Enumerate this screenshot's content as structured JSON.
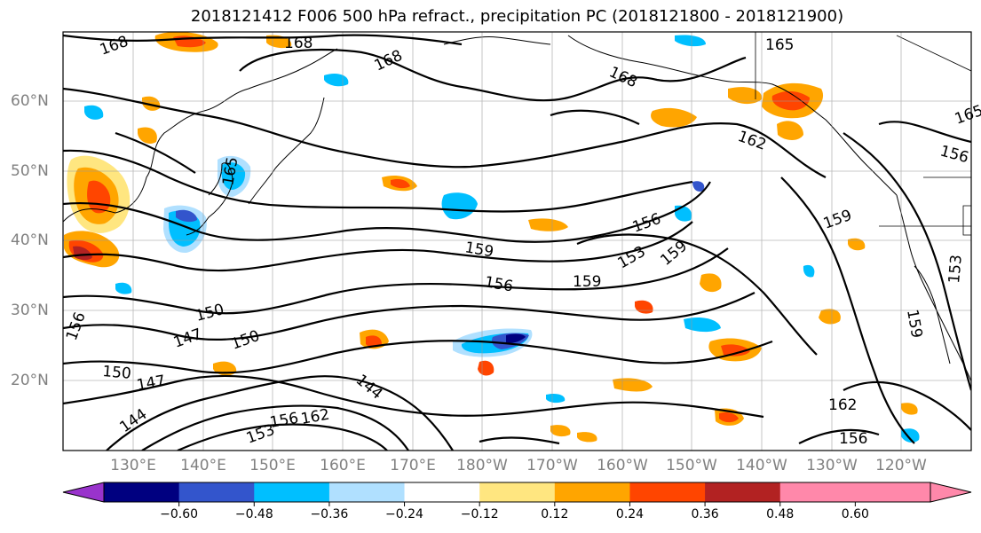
{
  "title": "2018121412 F006 500 hPa refract., precipitation PC (2018121800 - 2018121900)",
  "lat_labels": [
    "60°N",
    "50°N",
    "40°N",
    "30°N",
    "20°N"
  ],
  "lon_labels": [
    "130°E",
    "140°E",
    "150°E",
    "160°E",
    "170°E",
    "180°W",
    "170°W",
    "160°W",
    "150°W",
    "140°W",
    "130°W",
    "120°W"
  ],
  "contour_labels": [
    "168",
    "168",
    "168",
    "168",
    "165",
    "165",
    "162",
    "156",
    "165",
    "159",
    "159",
    "156",
    "156",
    "153",
    "159",
    "159",
    "150",
    "147",
    "150",
    "150",
    "147",
    "144",
    "144",
    "156",
    "162",
    "162",
    "156",
    "153",
    "156",
    "153",
    "159"
  ],
  "colorbar": {
    "ticks": [
      "−0.60",
      "−0.48",
      "−0.36",
      "−0.24",
      "−0.12",
      "0.12",
      "0.24",
      "0.36",
      "0.48",
      "0.60"
    ],
    "colors": [
      "#9933cc",
      "#000080",
      "#3355cc",
      "#00bfff",
      "#b0e0ff",
      "#ffffff",
      "#ffe680",
      "#ffa500",
      "#ff4500",
      "#b22222",
      "#ff88aa",
      "#ff88aa"
    ],
    "under_color": "#9933cc",
    "over_color": "#ff88aa"
  }
}
